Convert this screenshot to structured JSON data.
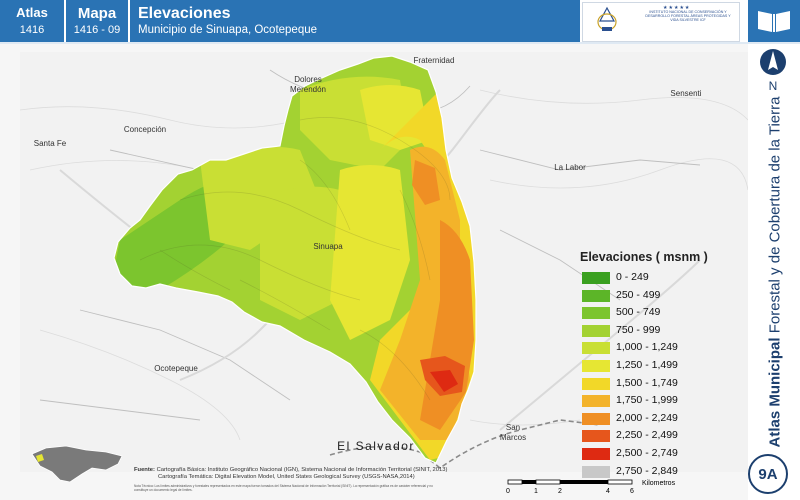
{
  "header": {
    "atlas_label": "Atlas",
    "atlas_number": "1416",
    "map_label": "Mapa",
    "map_number": "1416 - 09",
    "title": "Elevaciones",
    "subtitle": "Municipio de Sinuapa, Ocotepeque"
  },
  "logos": {
    "left_caption": "GOBIERNO DE LA REPÚBLICA DE HONDURAS",
    "right_caption": "INSTITUTO NACIONAL DE CONSERVACIÓN Y DESARROLLO FORESTAL ÁREAS PROTEGIDAS Y VIDA SILVESTRE ICF"
  },
  "sidebar": {
    "north_letter": "N",
    "vertical_title_bold": "Atlas Municipal",
    "vertical_title_rest": " Forestal y de Cobertura de la Tierra",
    "badge": "9A"
  },
  "places": [
    {
      "key": "dolores",
      "name": "Dolores\nMerendón"
    },
    {
      "key": "fraternidad",
      "name": "Fraternidad"
    },
    {
      "key": "sensenti",
      "name": "Sensenti"
    },
    {
      "key": "concepcion",
      "name": "Concepción"
    },
    {
      "key": "santafe",
      "name": "Santa Fe"
    },
    {
      "key": "lalabor",
      "name": "La Labor"
    },
    {
      "key": "sinuapa",
      "name": "Sinuapa"
    },
    {
      "key": "ocotepeque",
      "name": "Ocotepeque"
    },
    {
      "key": "sanmarcos",
      "name": "San\nMarcos"
    },
    {
      "key": "elsalvador",
      "name": "El Salvador"
    }
  ],
  "legend": {
    "title": "Elevaciones ( msnm )",
    "classes": [
      {
        "label": "0 - 249",
        "color": "#3aa020"
      },
      {
        "label": "250 - 499",
        "color": "#5cb528"
      },
      {
        "label": "500 - 749",
        "color": "#7cc52e"
      },
      {
        "label": "750 - 999",
        "color": "#a3d232"
      },
      {
        "label": "1,000 - 1,249",
        "color": "#c9df34"
      },
      {
        "label": "1,250 - 1,499",
        "color": "#e6e633"
      },
      {
        "label": "1,500 - 1,749",
        "color": "#f2d828"
      },
      {
        "label": "1,750 - 1,999",
        "color": "#f3b32a"
      },
      {
        "label": "2,000 - 2,249",
        "color": "#ef8f24"
      },
      {
        "label": "2,250 - 2,499",
        "color": "#e6561c"
      },
      {
        "label": "2,500 - 2,749",
        "color": "#de2a12"
      },
      {
        "label": "2,750 - 2,849",
        "color": "#c8c8c8"
      }
    ]
  },
  "source": {
    "label": "Fuente:",
    "lines": [
      "Cartografía Básica: Instituto Geográfico Nacional (IGN), Sistema Nacional de Información Territorial (SINIT, 2013)",
      "Cartografía Temática: Digital Elevation Model, United States Geological Survey (USGS-NASA,2014)"
    ],
    "fine_print": "Nota Técnica: Los límites administrativos y forestales representados en este mapa fueron tomados del Sistema Nacional de Información Territorial (SINIT). La representación gráfica es de carácter referencial y no constituye un documento legal de límites."
  },
  "scale": {
    "ticks": [
      "0",
      "1",
      "2",
      "4",
      "6"
    ],
    "unit": "Kilometros"
  }
}
